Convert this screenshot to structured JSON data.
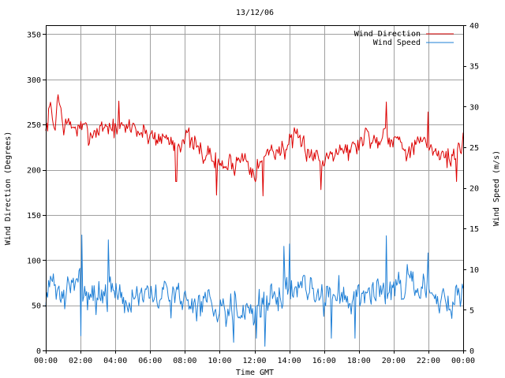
{
  "chart_data": {
    "type": "line",
    "title": "13/12/06",
    "xlabel": "Time GMT",
    "ylabel_left": "Wind Direction (Degrees)",
    "ylabel_right": "Wind Speed (m/s)",
    "x_ticks": [
      "00:00",
      "02:00",
      "04:00",
      "06:00",
      "08:00",
      "10:00",
      "12:00",
      "14:00",
      "16:00",
      "18:00",
      "20:00",
      "22:00",
      "00:00"
    ],
    "y_left_ticks": [
      "0",
      "50",
      "100",
      "150",
      "200",
      "250",
      "300",
      "350"
    ],
    "y_right_ticks": [
      "0",
      "5",
      "10",
      "15",
      "20",
      "25",
      "30",
      "35",
      "40"
    ],
    "ylim_left": [
      0,
      360
    ],
    "ylim_right": [
      0,
      40
    ],
    "xlim_hours": [
      0,
      24
    ],
    "grid": true,
    "legend_position": "top-right",
    "series": [
      {
        "name": "Wind Direction",
        "axis": "left",
        "color": "#dd0000",
        "anchors": [
          [
            0,
            240
          ],
          [
            0.25,
            270
          ],
          [
            0.5,
            245
          ],
          [
            0.7,
            282
          ],
          [
            1,
            250
          ],
          [
            1.5,
            248
          ],
          [
            2,
            245
          ],
          [
            2.5,
            240
          ],
          [
            3,
            245
          ],
          [
            3.5,
            250
          ],
          [
            4,
            245
          ],
          [
            4.5,
            245
          ],
          [
            5,
            250
          ],
          [
            5.5,
            240
          ],
          [
            6,
            240
          ],
          [
            6.5,
            235
          ],
          [
            7,
            235
          ],
          [
            7.5,
            228
          ],
          [
            8,
            238
          ],
          [
            8.5,
            225
          ],
          [
            9,
            220
          ],
          [
            9.5,
            215
          ],
          [
            10,
            205
          ],
          [
            10.5,
            205
          ],
          [
            11,
            210
          ],
          [
            11.5,
            215
          ],
          [
            12,
            200
          ],
          [
            12.5,
            210
          ],
          [
            13,
            225
          ],
          [
            13.5,
            220
          ],
          [
            14,
            230
          ],
          [
            14.5,
            230
          ],
          [
            15,
            225
          ],
          [
            15.5,
            215
          ],
          [
            16,
            210
          ],
          [
            16.5,
            225
          ],
          [
            17,
            225
          ],
          [
            17.5,
            220
          ],
          [
            18,
            230
          ],
          [
            18.5,
            240
          ],
          [
            19,
            230
          ],
          [
            19.5,
            245
          ],
          [
            20,
            235
          ],
          [
            20.5,
            230
          ],
          [
            21,
            220
          ],
          [
            21.5,
            230
          ],
          [
            22,
            225
          ],
          [
            22.5,
            222
          ],
          [
            23,
            215
          ],
          [
            23.5,
            215
          ],
          [
            24,
            232
          ]
        ],
        "amplitude": 34,
        "extremes": [
          [
            0.7,
            283
          ],
          [
            4.2,
            276
          ],
          [
            7.5,
            187
          ],
          [
            9.8,
            172
          ],
          [
            12.5,
            171
          ],
          [
            15.8,
            178
          ],
          [
            19.6,
            275
          ],
          [
            22.0,
            264
          ],
          [
            23.6,
            187
          ]
        ],
        "seed": 7
      },
      {
        "name": "Wind Speed",
        "axis": "right",
        "color": "#1e7fd6",
        "anchors": [
          [
            0,
            7.5
          ],
          [
            0.5,
            8
          ],
          [
            1,
            6.5
          ],
          [
            1.5,
            7.5
          ],
          [
            2,
            9
          ],
          [
            2.5,
            7
          ],
          [
            3,
            7
          ],
          [
            3.5,
            6
          ],
          [
            4,
            8
          ],
          [
            4.5,
            6
          ],
          [
            5,
            6.5
          ],
          [
            5.5,
            7
          ],
          [
            6,
            6
          ],
          [
            6.5,
            6.5
          ],
          [
            7,
            7
          ],
          [
            7.5,
            6.5
          ],
          [
            8,
            6
          ],
          [
            8.5,
            5.8
          ],
          [
            9,
            6
          ],
          [
            9.5,
            6
          ],
          [
            10,
            5.5
          ],
          [
            10.5,
            5.5
          ],
          [
            11,
            5.5
          ],
          [
            11.5,
            5.2
          ],
          [
            12,
            5
          ],
          [
            12.5,
            5.5
          ],
          [
            13,
            6
          ],
          [
            13.5,
            7
          ],
          [
            14,
            7.5
          ],
          [
            14.5,
            8
          ],
          [
            15,
            7.5
          ],
          [
            15.5,
            6.5
          ],
          [
            16,
            6.5
          ],
          [
            16.5,
            7
          ],
          [
            17,
            6.5
          ],
          [
            17.5,
            6.5
          ],
          [
            18,
            7.5
          ],
          [
            18.5,
            7.5
          ],
          [
            19,
            7
          ],
          [
            19.5,
            8
          ],
          [
            20,
            8.5
          ],
          [
            20.5,
            8
          ],
          [
            21,
            8
          ],
          [
            21.5,
            7
          ],
          [
            22,
            6.5
          ],
          [
            22.5,
            6
          ],
          [
            23,
            6
          ],
          [
            23.5,
            6
          ],
          [
            24,
            7.5
          ]
        ],
        "amplitude": 5.5,
        "extremes": [
          [
            2.05,
            14.2
          ],
          [
            3.6,
            13.6
          ],
          [
            2.0,
            1.8
          ],
          [
            10.8,
            1.0
          ],
          [
            12.1,
            1.5
          ],
          [
            12.6,
            0.5
          ],
          [
            14.0,
            13.1
          ],
          [
            17.8,
            1.5
          ],
          [
            19.6,
            14.1
          ],
          [
            16.4,
            1.5
          ],
          [
            22.0,
            12.0
          ],
          [
            13.7,
            12.8
          ]
        ],
        "seed": 31
      }
    ]
  }
}
